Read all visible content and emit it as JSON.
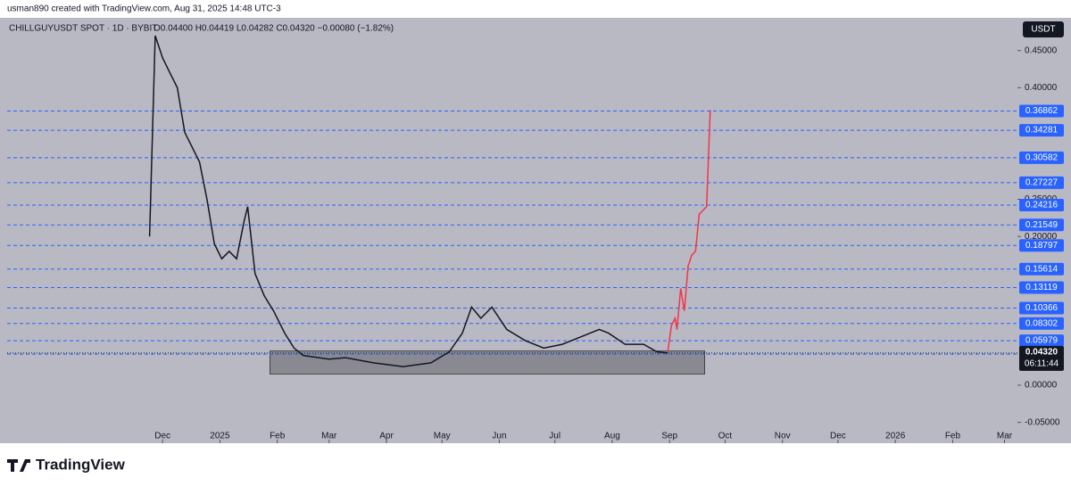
{
  "chart_data": {
    "type": "line",
    "header": "usman890 created with TradingView.com, Aug 31, 2025 14:48 UTC-3",
    "symbol": "CHILLGUYUSDT SPOT · 1D · BYBIT",
    "ohlc": "O0.04400 H0.04419 L0.04282 C0.04320 −0.00080 (−1.82%)",
    "currency": "USDT",
    "brand": "TradingView",
    "xlim": [
      "2024-09-08",
      "2026-03-08"
    ],
    "xticks": [
      {
        "value": "2024-12-01",
        "label": "Dec"
      },
      {
        "value": "2025-01-01",
        "label": "2025"
      },
      {
        "value": "2025-02-01",
        "label": "Feb"
      },
      {
        "value": "2025-03-01",
        "label": "Mar"
      },
      {
        "value": "2025-04-01",
        "label": "Apr"
      },
      {
        "value": "2025-05-01",
        "label": "May"
      },
      {
        "value": "2025-06-01",
        "label": "Jun"
      },
      {
        "value": "2025-07-01",
        "label": "Jul"
      },
      {
        "value": "2025-08-01",
        "label": "Aug"
      },
      {
        "value": "2025-09-01",
        "label": "Sep"
      },
      {
        "value": "2025-10-01",
        "label": "Oct"
      },
      {
        "value": "2025-11-01",
        "label": "Nov"
      },
      {
        "value": "2025-12-01",
        "label": "Dec"
      },
      {
        "value": "2026-01-01",
        "label": "2026"
      },
      {
        "value": "2026-02-01",
        "label": "Feb"
      },
      {
        "value": "2026-03-01",
        "label": "Mar"
      }
    ],
    "ylim": [
      -0.078,
      0.494
    ],
    "yticks": [
      {
        "value": 0.45,
        "label": "0.45000"
      },
      {
        "value": 0.4,
        "label": "0.40000"
      },
      {
        "value": 0.25,
        "label": "0.25000"
      },
      {
        "value": 0.2,
        "label": "0.20000"
      },
      {
        "value": 0,
        "label": "0.00000"
      },
      {
        "value": -0.05,
        "label": "-0.05000"
      }
    ],
    "series": [
      {
        "color": "#131722",
        "x": [
          "2024-11-24",
          "2024-11-27",
          "2024-12-01",
          "2024-12-05",
          "2024-12-09",
          "2024-12-13",
          "2024-12-17",
          "2024-12-21",
          "2024-12-25",
          "2024-12-29",
          "2025-01-02",
          "2025-01-06",
          "2025-01-10",
          "2025-01-14",
          "2025-01-16",
          "2025-01-20",
          "2025-01-25",
          "2025-01-30",
          "2025-02-05",
          "2025-02-10",
          "2025-02-15",
          "2025-03-01",
          "2025-03-10",
          "2025-03-25",
          "2025-04-10",
          "2025-04-25",
          "2025-05-05",
          "2025-05-12",
          "2025-05-17",
          "2025-05-22",
          "2025-05-28",
          "2025-06-05",
          "2025-06-15",
          "2025-06-25",
          "2025-07-05",
          "2025-07-15",
          "2025-07-25",
          "2025-07-30",
          "2025-08-08",
          "2025-08-18",
          "2025-08-25",
          "2025-08-31"
        ],
        "values": [
          0.2,
          0.47,
          0.44,
          0.42,
          0.4,
          0.34,
          0.32,
          0.3,
          0.25,
          0.19,
          0.17,
          0.18,
          0.17,
          0.22,
          0.24,
          0.15,
          0.12,
          0.1,
          0.07,
          0.05,
          0.04,
          0.035,
          0.037,
          0.03,
          0.025,
          0.03,
          0.045,
          0.07,
          0.105,
          0.09,
          0.105,
          0.075,
          0.06,
          0.05,
          0.055,
          0.065,
          0.075,
          0.07,
          0.055,
          0.055,
          0.045,
          0.0432
        ]
      },
      {
        "color": "#f23645",
        "x": [
          "2025-08-31",
          "2025-09-02",
          "2025-09-04",
          "2025-09-05",
          "2025-09-07",
          "2025-09-09",
          "2025-09-11",
          "2025-09-13",
          "2025-09-15",
          "2025-09-17",
          "2025-09-19",
          "2025-09-21",
          "2025-09-23"
        ],
        "values": [
          0.045,
          0.08,
          0.09,
          0.075,
          0.13,
          0.1,
          0.16,
          0.175,
          0.18,
          0.23,
          0.235,
          0.24,
          0.37
        ]
      }
    ],
    "range_box": {
      "x": [
        "2025-01-28",
        "2025-09-20"
      ],
      "values": [
        0.015,
        0.046
      ],
      "color": "#7a7a80"
    },
    "levels": [
      0.36862,
      0.34281,
      0.30582,
      0.27227,
      0.24216,
      0.21549,
      0.18797,
      0.15614,
      0.13119,
      0.10366,
      0.08302,
      0.05979,
      0.04172
    ],
    "level_color": "#2962ff",
    "last_price": {
      "value": 0.0432,
      "label": "0.04320"
    },
    "countdown": "06:11:44"
  }
}
